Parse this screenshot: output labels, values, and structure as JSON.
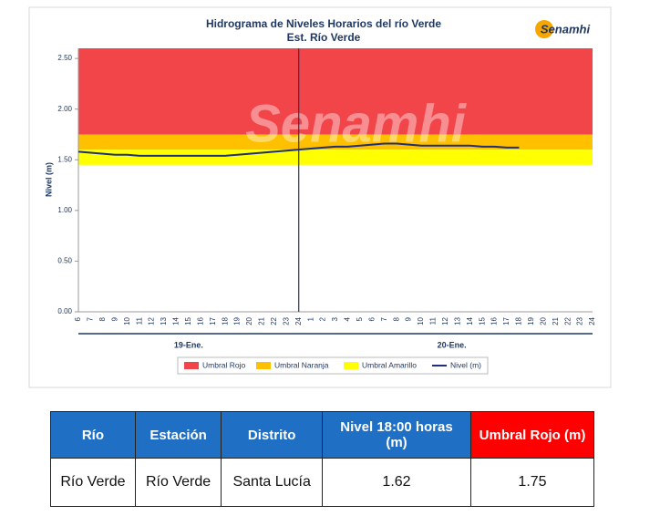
{
  "chart_data": {
    "type": "line",
    "title": "Hidrograma de Niveles Horarios del río Verde",
    "subtitle": "Est. Río Verde",
    "logo": "Senamhi",
    "watermark": "Senamhi",
    "ylabel": "Nivel (m)",
    "categories": [
      "6",
      "7",
      "8",
      "9",
      "10",
      "11",
      "12",
      "13",
      "14",
      "15",
      "16",
      "17",
      "18",
      "19",
      "20",
      "21",
      "22",
      "23",
      "24",
      "1",
      "2",
      "3",
      "4",
      "5",
      "6",
      "7",
      "8",
      "9",
      "10",
      "11",
      "12",
      "13",
      "14",
      "15",
      "16",
      "17",
      "18",
      "19",
      "20",
      "21",
      "22",
      "23",
      "24"
    ],
    "x_groups": [
      "19-Ene.",
      "20-Ene."
    ],
    "bands": [
      {
        "name": "Umbral Rojo",
        "color": "#f2454a",
        "from": 1.75,
        "to": 2.6
      },
      {
        "name": "Umbral Naranja",
        "color": "#ffc000",
        "from": 1.6,
        "to": 1.75
      },
      {
        "name": "Umbral Amarillo",
        "color": "#ffff00",
        "from": 1.45,
        "to": 1.6
      }
    ],
    "series": [
      {
        "name": "Nivel (m)",
        "color": "#1f2f7a",
        "values": [
          1.58,
          1.57,
          1.56,
          1.55,
          1.55,
          1.54,
          1.54,
          1.54,
          1.54,
          1.54,
          1.54,
          1.54,
          1.54,
          1.55,
          1.56,
          1.57,
          1.58,
          1.59,
          1.6,
          1.61,
          1.62,
          1.63,
          1.63,
          1.64,
          1.65,
          1.66,
          1.66,
          1.65,
          1.64,
          1.64,
          1.64,
          1.64,
          1.64,
          1.63,
          1.63,
          1.62,
          1.62,
          null,
          null,
          null,
          null,
          null,
          null
        ]
      }
    ],
    "ylim": [
      0,
      2.6
    ],
    "yticks": [
      {
        "value": 0,
        "label": "0.00"
      },
      {
        "value": 0.5,
        "label": "0.50"
      },
      {
        "value": 1,
        "label": "1.00"
      },
      {
        "value": 1.5,
        "label": "1.50"
      },
      {
        "value": 2,
        "label": "2.00"
      },
      {
        "value": 2.5,
        "label": "2.50"
      }
    ],
    "grid": false
  },
  "table": {
    "header": [
      "Río",
      "Estación",
      "Distrito",
      "Nivel  18:00 horas (m)",
      "Umbral Rojo (m)"
    ],
    "rows": [
      [
        "Río Verde",
        "Río Verde",
        "Santa Lucía",
        1.62,
        1.75
      ]
    ]
  }
}
